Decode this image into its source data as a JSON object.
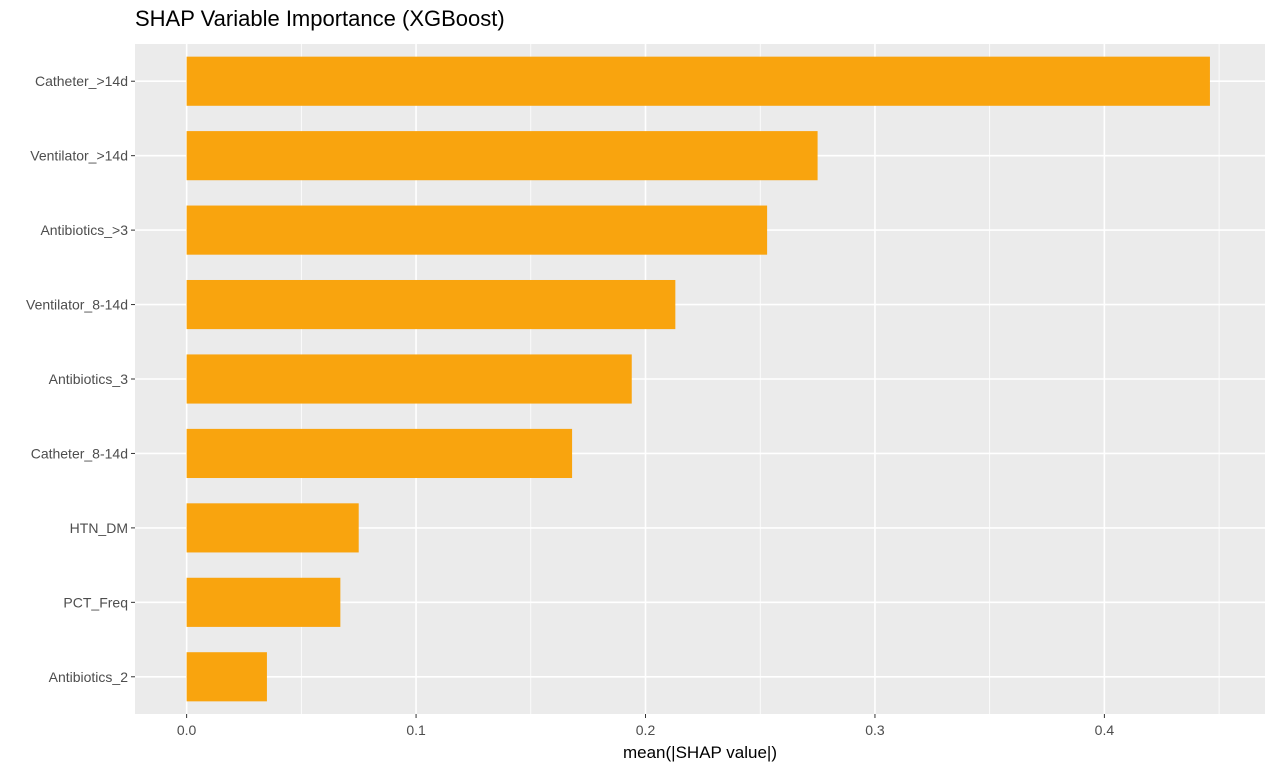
{
  "chart_data": {
    "type": "bar",
    "orientation": "horizontal",
    "title": "SHAP Variable Importance (XGBoost)",
    "xlabel": "mean(|SHAP value|)",
    "ylabel": "",
    "categories": [
      "Catheter_>14d",
      "Ventilator_>14d",
      "Antibiotics_>3",
      "Ventilator_8-14d",
      "Antibiotics_3",
      "Catheter_8-14d",
      "HTN_DM",
      "PCT_Freq",
      "Antibiotics_2"
    ],
    "values": [
      0.446,
      0.275,
      0.253,
      0.213,
      0.194,
      0.168,
      0.075,
      0.067,
      0.035
    ],
    "xlim": [
      -0.0225,
      0.47
    ],
    "xticks": [
      0.0,
      0.1,
      0.2,
      0.3,
      0.4
    ],
    "xtick_labels": [
      "0.0",
      "0.1",
      "0.2",
      "0.3",
      "0.4"
    ],
    "grid": true,
    "bar_color": "#F9A40E",
    "panel_color": "#EBEBEB",
    "grid_color": "#FFFFFF"
  }
}
